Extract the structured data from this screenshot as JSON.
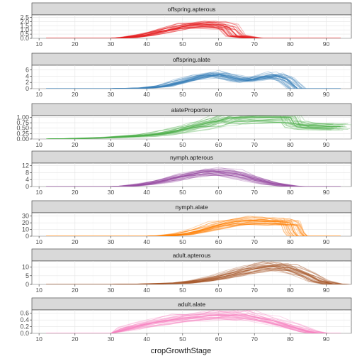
{
  "chart_data": {
    "type": "line",
    "xlabel": "cropGrowthStage",
    "xlim": [
      8,
      97
    ],
    "x_ticks": [
      "10",
      "20",
      "30",
      "40",
      "50",
      "60",
      "70",
      "80",
      "90"
    ],
    "grid": true,
    "strip_color": "#d9d9d9",
    "panels": [
      {
        "name": "offspring.apterous",
        "color": "#e41a1c",
        "ylim": [
          0,
          2.8
        ],
        "y_ticks": [
          "0.0",
          "0.5",
          "1.0",
          "1.5",
          "2.0",
          "2.5"
        ],
        "x": [
          12,
          25,
          30,
          35,
          40,
          45,
          50,
          55,
          60,
          63,
          65,
          70,
          80,
          94
        ],
        "values": [
          0,
          0,
          0,
          0.1,
          0.4,
          0.9,
          1.4,
          1.7,
          1.6,
          1.3,
          0.3,
          0,
          0,
          0
        ]
      },
      {
        "name": "offspring.alate",
        "color": "#377eb8",
        "ylim": [
          0,
          7.5
        ],
        "y_ticks": [
          "0",
          "2",
          "4",
          "6"
        ],
        "x": [
          12,
          30,
          40,
          45,
          50,
          55,
          60,
          65,
          68,
          72,
          76,
          79,
          81,
          82,
          94
        ],
        "values": [
          0,
          0,
          0.2,
          0.8,
          2.2,
          3.8,
          4.6,
          3.2,
          2.6,
          3.6,
          4.2,
          3.0,
          1.0,
          0,
          0
        ]
      },
      {
        "name": "alateProportion",
        "color": "#4daf4a",
        "ylim": [
          0,
          1.08
        ],
        "y_ticks": [
          "0.00",
          "0.25",
          "0.50",
          "0.75",
          "1.00"
        ],
        "x": [
          12,
          20,
          30,
          40,
          45,
          50,
          55,
          60,
          63,
          65,
          70,
          80,
          81,
          84,
          90,
          94
        ],
        "values": [
          0,
          0.02,
          0.07,
          0.17,
          0.28,
          0.45,
          0.65,
          0.85,
          0.97,
          1.0,
          1.0,
          1.0,
          0.72,
          0.62,
          0.58,
          0.57
        ]
      },
      {
        "name": "nymph.apterous",
        "color": "#984ea3",
        "ylim": [
          0,
          13.5
        ],
        "y_ticks": [
          "0",
          "4",
          "8",
          "12"
        ],
        "x": [
          12,
          30,
          35,
          40,
          45,
          50,
          55,
          60,
          65,
          70,
          75,
          80,
          82,
          94
        ],
        "values": [
          0,
          0,
          0.3,
          1.5,
          3.5,
          6.0,
          8.0,
          8.8,
          7.5,
          4.5,
          1.8,
          0.3,
          0,
          0
        ]
      },
      {
        "name": "nymph.alate",
        "color": "#ff7f00",
        "ylim": [
          0,
          35
        ],
        "y_ticks": [
          "0",
          "10",
          "20",
          "30"
        ],
        "x": [
          12,
          40,
          45,
          50,
          55,
          60,
          65,
          70,
          75,
          78,
          80,
          81,
          82,
          94
        ],
        "values": [
          0,
          0,
          0.5,
          3,
          9,
          17,
          22,
          23,
          22,
          21,
          20,
          6,
          0,
          0
        ]
      },
      {
        "name": "adult.apterous",
        "color": "#a65628",
        "ylim": [
          0,
          13.5
        ],
        "y_ticks": [
          "0",
          "5",
          "10"
        ],
        "x": [
          12,
          30,
          40,
          50,
          55,
          60,
          65,
          70,
          75,
          80,
          85,
          88,
          92,
          94
        ],
        "values": [
          0,
          0,
          0.2,
          0.8,
          2,
          3.8,
          6.5,
          9,
          10.5,
          9.5,
          5.5,
          2,
          0.2,
          0
        ]
      },
      {
        "name": "adult.alate",
        "color": "#f781bf",
        "ylim": [
          0,
          0.7
        ],
        "y_ticks": [
          "0.0",
          "0.2",
          "0.4",
          "0.6"
        ],
        "x": [
          12,
          30,
          35,
          40,
          45,
          50,
          55,
          60,
          65,
          68,
          75,
          80,
          85,
          88,
          94
        ],
        "values": [
          0,
          0,
          0.15,
          0.28,
          0.38,
          0.46,
          0.51,
          0.54,
          0.55,
          0.55,
          0.38,
          0.22,
          0.06,
          0,
          0
        ]
      }
    ]
  }
}
